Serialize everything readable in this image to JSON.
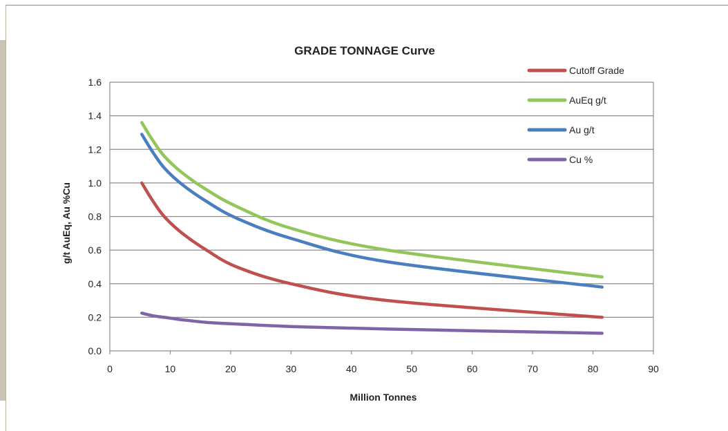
{
  "chart_data": {
    "type": "line",
    "title": "GRADE TONNAGE Curve",
    "xlabel": "Million Tonnes",
    "ylabel": "g/t AuEq, Au %Cu",
    "xlim": [
      0,
      90
    ],
    "ylim": [
      0,
      1.6
    ],
    "xticks": [
      0,
      10,
      20,
      30,
      40,
      50,
      60,
      70,
      80,
      90
    ],
    "yticks": [
      "0.0",
      "0.2",
      "0.4",
      "0.6",
      "0.8",
      "1.0",
      "1.2",
      "1.4",
      "1.6"
    ],
    "grid": "horizontal",
    "legend_position": "top-right",
    "series": [
      {
        "name": "Cutoff Grade",
        "color": "#c0504d",
        "points": [
          [
            5.3,
            1.0
          ],
          [
            7,
            0.9
          ],
          [
            9,
            0.8
          ],
          [
            12,
            0.7
          ],
          [
            16,
            0.6
          ],
          [
            21,
            0.5
          ],
          [
            30,
            0.4
          ],
          [
            46,
            0.3
          ],
          [
            81.5,
            0.2
          ]
        ]
      },
      {
        "name": "AuEq g/t",
        "color": "#92c65a",
        "points": [
          [
            5.3,
            1.36
          ],
          [
            7,
            1.26
          ],
          [
            9,
            1.16
          ],
          [
            12,
            1.06
          ],
          [
            16,
            0.96
          ],
          [
            21,
            0.86
          ],
          [
            30,
            0.73
          ],
          [
            46,
            0.6
          ],
          [
            81.5,
            0.44
          ]
        ]
      },
      {
        "name": "Au g/t",
        "color": "#4a7ebf",
        "points": [
          [
            5.3,
            1.29
          ],
          [
            7,
            1.19
          ],
          [
            9,
            1.09
          ],
          [
            12,
            0.99
          ],
          [
            16,
            0.89
          ],
          [
            21,
            0.79
          ],
          [
            30,
            0.67
          ],
          [
            46,
            0.53
          ],
          [
            81.5,
            0.38
          ]
        ]
      },
      {
        "name": "Cu %",
        "color": "#7f65a8",
        "points": [
          [
            5.3,
            0.225
          ],
          [
            7,
            0.21
          ],
          [
            9,
            0.2
          ],
          [
            12,
            0.185
          ],
          [
            16,
            0.17
          ],
          [
            21,
            0.16
          ],
          [
            30,
            0.145
          ],
          [
            46,
            0.13
          ],
          [
            81.5,
            0.105
          ]
        ]
      }
    ]
  }
}
